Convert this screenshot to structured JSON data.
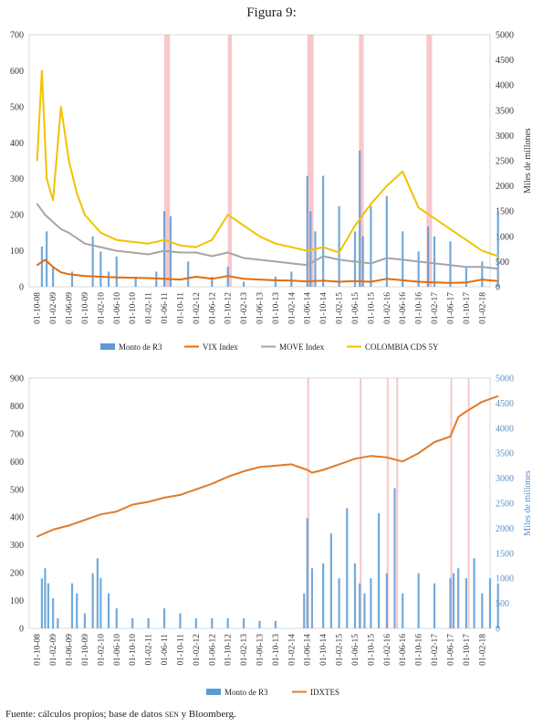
{
  "figure_title": "Figura 9:",
  "source": {
    "prefix": "Fuente: cálculos propios; base de datos ",
    "db": "sen",
    "suffix": " y Bloomberg."
  },
  "colors": {
    "r3": "#5b9bd5",
    "vix": "#e46c0a",
    "move": "#a5a5a5",
    "cds": "#f2c200",
    "idxtes": "#e07b2a",
    "shade": "#f4a9ae"
  },
  "chart_data": [
    {
      "type": "line",
      "ylim": [
        0,
        700
      ],
      "yticks": [
        "0",
        "100",
        "200",
        "300",
        "400",
        "500",
        "600",
        "700"
      ],
      "y2lim": [
        0,
        5000
      ],
      "y2ticks": [
        "0",
        "500",
        "1000",
        "1500",
        "2000",
        "2500",
        "3000",
        "3500",
        "4000",
        "4500",
        "5000"
      ],
      "y2label": "Miles de millones",
      "categories": [
        "01-10-08",
        "01-02-09",
        "01-06-09",
        "01-10-09",
        "01-02-10",
        "01-06-10",
        "01-10-10",
        "01-02-11",
        "01-06-11",
        "01-10-11",
        "01-02-12",
        "01-06-12",
        "01-10-12",
        "01-02-13",
        "01-06-13",
        "01-10-13",
        "01-02-14",
        "01-06-14",
        "01-10-14",
        "01-02-15",
        "01-06-15",
        "01-10-15",
        "01-02-16",
        "01-06-16",
        "01-10-16",
        "01-02-17",
        "01-06-17",
        "01-10-17",
        "01-02-18"
      ],
      "shaded_periods": [
        [
          8.0,
          8.35
        ],
        [
          12.0,
          12.25
        ],
        [
          17.0,
          17.4
        ],
        [
          20.25,
          20.55
        ],
        [
          24.5,
          24.85
        ]
      ],
      "series": [
        {
          "name": "Monto de R3",
          "type": "bar",
          "axis": "right",
          "x": [
            0.3,
            0.6,
            1,
            2.2,
            3.5,
            4,
            4.5,
            5,
            6.2,
            7.5,
            8,
            8.4,
            9.5,
            11,
            12,
            13,
            15,
            16,
            17,
            17.2,
            17.5,
            18,
            19,
            20,
            20.3,
            20.5,
            21,
            22,
            23,
            24,
            24.6,
            25,
            26,
            27,
            28,
            29
          ],
          "values": [
            800,
            1100,
            400,
            300,
            1000,
            700,
            300,
            600,
            200,
            300,
            1500,
            1400,
            500,
            200,
            400,
            100,
            200,
            300,
            2200,
            1500,
            1100,
            2200,
            1600,
            1100,
            2700,
            1000,
            1600,
            1800,
            1100,
            700,
            1200,
            1000,
            900,
            400,
            500,
            1500
          ]
        },
        {
          "name": "VIX Index",
          "type": "line",
          "axis": "left",
          "x": [
            0,
            0.5,
            1,
            1.5,
            2,
            3,
            4,
            5,
            6,
            7,
            8,
            9,
            10,
            11,
            12,
            13,
            14,
            15,
            16,
            17,
            18,
            19,
            20,
            21,
            22,
            23,
            24,
            25,
            26,
            27,
            28,
            29
          ],
          "values": [
            60,
            75,
            55,
            40,
            35,
            30,
            28,
            26,
            25,
            24,
            22,
            20,
            28,
            22,
            30,
            22,
            20,
            18,
            17,
            15,
            17,
            14,
            16,
            14,
            22,
            18,
            14,
            12,
            11,
            12,
            20,
            16
          ]
        },
        {
          "name": "MOVE Index",
          "type": "line",
          "axis": "left",
          "x": [
            0,
            0.5,
            1,
            1.5,
            2,
            3,
            4,
            5,
            6,
            7,
            8,
            9,
            10,
            11,
            12,
            13,
            14,
            15,
            16,
            17,
            18,
            19,
            20,
            21,
            22,
            23,
            24,
            25,
            26,
            27,
            28,
            29
          ],
          "values": [
            230,
            200,
            180,
            160,
            150,
            120,
            110,
            100,
            95,
            90,
            100,
            95,
            95,
            85,
            95,
            80,
            75,
            70,
            65,
            60,
            85,
            75,
            70,
            65,
            80,
            75,
            70,
            65,
            60,
            55,
            55,
            50
          ]
        },
        {
          "name": "COLOMBIA CDS 5Y",
          "type": "line",
          "axis": "left",
          "x": [
            0,
            0.3,
            0.6,
            1,
            1.5,
            2,
            2.5,
            3,
            4,
            5,
            6,
            7,
            8,
            9,
            10,
            11,
            12,
            13,
            14,
            15,
            16,
            17,
            18,
            19,
            20,
            21,
            22,
            23,
            24,
            25,
            26,
            27,
            28,
            29
          ],
          "values": [
            350,
            600,
            300,
            240,
            500,
            350,
            260,
            200,
            150,
            130,
            125,
            120,
            130,
            115,
            110,
            130,
            200,
            170,
            140,
            120,
            110,
            100,
            110,
            95,
            170,
            230,
            280,
            320,
            220,
            190,
            160,
            130,
            100,
            85
          ]
        }
      ],
      "legend": [
        "Monto de R3",
        "VIX Index",
        "MOVE Index",
        "COLOMBIA CDS 5Y"
      ],
      "legend_position": "bottom"
    },
    {
      "type": "line",
      "ylim": [
        0,
        900
      ],
      "yticks": [
        "0",
        "100",
        "200",
        "300",
        "400",
        "500",
        "600",
        "700",
        "800",
        "900"
      ],
      "y2lim": [
        0,
        5000
      ],
      "y2ticks": [
        "0",
        "500",
        "1000",
        "1500",
        "2000",
        "2500",
        "3000",
        "3500",
        "4000",
        "4500",
        "5000"
      ],
      "y2label": "Miles de millones",
      "categories": [
        "01-10-08",
        "01-02-09",
        "01-06-09",
        "01-10-09",
        "01-02-10",
        "01-06-10",
        "01-10-10",
        "01-02-11",
        "01-06-11",
        "01-10-11",
        "01-02-12",
        "01-06-12",
        "01-10-12",
        "01-02-13",
        "01-06-13",
        "01-10-13",
        "01-02-14",
        "01-06-14",
        "01-10-14",
        "01-02-15",
        "01-06-15",
        "01-10-15",
        "01-02-16",
        "01-06-16",
        "01-10-16",
        "01-02-17",
        "01-06-17",
        "01-10-17",
        "01-02-18"
      ],
      "shaded_periods": [
        [
          17.0,
          17.1
        ],
        [
          20.3,
          20.4
        ],
        [
          22.0,
          22.1
        ],
        [
          22.6,
          22.7
        ],
        [
          26.0,
          26.1
        ],
        [
          27.1,
          27.2
        ]
      ],
      "series": [
        {
          "name": "Monto de R3",
          "type": "bar",
          "axis": "right",
          "x": [
            0.3,
            0.5,
            0.7,
            1,
            1.3,
            2.2,
            2.5,
            3,
            3.5,
            3.8,
            4,
            4.5,
            5,
            6,
            7,
            8,
            9,
            10,
            11,
            12,
            13,
            14,
            15,
            16.8,
            17,
            17.3,
            18,
            18.5,
            19,
            19.5,
            20,
            20.3,
            20.6,
            21,
            21.5,
            22,
            22.5,
            23,
            24,
            25,
            26,
            26.2,
            26.5,
            27,
            27.5,
            28,
            28.5,
            29
          ],
          "values": [
            1000,
            1200,
            900,
            600,
            200,
            900,
            700,
            300,
            1100,
            1400,
            1000,
            700,
            400,
            200,
            200,
            400,
            300,
            200,
            200,
            200,
            200,
            150,
            150,
            700,
            2200,
            1200,
            1300,
            1900,
            1000,
            2400,
            1300,
            900,
            700,
            1000,
            2300,
            1100,
            2800,
            700,
            1100,
            900,
            1000,
            1100,
            1200,
            1000,
            1400,
            700,
            1000,
            900
          ]
        },
        {
          "name": "IDXTES",
          "type": "line",
          "axis": "left",
          "x": [
            0,
            1,
            2,
            3,
            4,
            5,
            6,
            7,
            8,
            9,
            10,
            11,
            12,
            13,
            14,
            15,
            16,
            17,
            17.3,
            18,
            19,
            20,
            21,
            22,
            23,
            24,
            25,
            26,
            26.5,
            27,
            28,
            29
          ],
          "values": [
            330,
            355,
            370,
            390,
            410,
            420,
            445,
            455,
            470,
            480,
            500,
            520,
            545,
            565,
            580,
            585,
            590,
            570,
            560,
            570,
            590,
            610,
            620,
            615,
            600,
            630,
            670,
            690,
            760,
            780,
            815,
            835
          ]
        }
      ],
      "legend": [
        "Monto de R3",
        "IDXTES"
      ],
      "legend_position": "bottom"
    }
  ]
}
